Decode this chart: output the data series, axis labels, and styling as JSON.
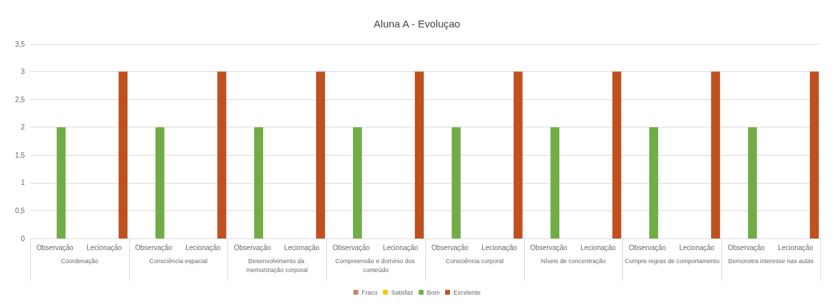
{
  "chart_data": {
    "type": "bar",
    "title": "Aluna A - Evoluçao",
    "categories": [
      "Observação",
      "Lecionação",
      "Observação",
      "Lecionação",
      "Observação",
      "Lecionação",
      "Observação",
      "Lecionação",
      "Observação",
      "Lecionação",
      "Observação",
      "Lecionação",
      "Observação",
      "Lecionação",
      "Observação",
      "Lecionação"
    ],
    "annotations": [
      "Coordenação",
      "Consciência espacial",
      "Desenvolvimento da memorização corporal",
      "Compreensão e domínio dos conteúdo",
      "Consciência corporal",
      "Níveis de concentração",
      "Cumpre regras de comportamento",
      "Demonstra interesse nas aulas"
    ],
    "series": [
      {
        "name": "Fraco",
        "color": "#c9825a",
        "values": [
          null,
          null,
          null,
          null,
          null,
          null,
          null,
          null,
          null,
          null,
          null,
          null,
          null,
          null,
          null,
          null
        ]
      },
      {
        "name": "Satisfaz",
        "color": "#ffc000",
        "values": [
          null,
          null,
          null,
          null,
          null,
          null,
          null,
          null,
          null,
          null,
          null,
          null,
          null,
          null,
          null,
          null
        ]
      },
      {
        "name": "Bom",
        "color": "#70ad47",
        "values": [
          2,
          null,
          2,
          null,
          2,
          null,
          2,
          null,
          2,
          null,
          2,
          null,
          2,
          null,
          2,
          null
        ]
      },
      {
        "name": "Excelente",
        "color": "#c0501f",
        "values": [
          null,
          3,
          null,
          3,
          null,
          3,
          null,
          3,
          null,
          3,
          null,
          3,
          null,
          3,
          null,
          3
        ]
      }
    ],
    "ylim": [
      0,
      3.5
    ],
    "yticks": [
      0,
      {
        "value": 0.5,
        "label": "0,5"
      },
      1,
      {
        "value": 1.5,
        "label": "1,5"
      },
      2,
      {
        "value": 2.5,
        "label": "2,5"
      },
      3,
      {
        "value": 3.5,
        "label": "3,5"
      }
    ],
    "grid": "y",
    "legend": "bottom"
  }
}
